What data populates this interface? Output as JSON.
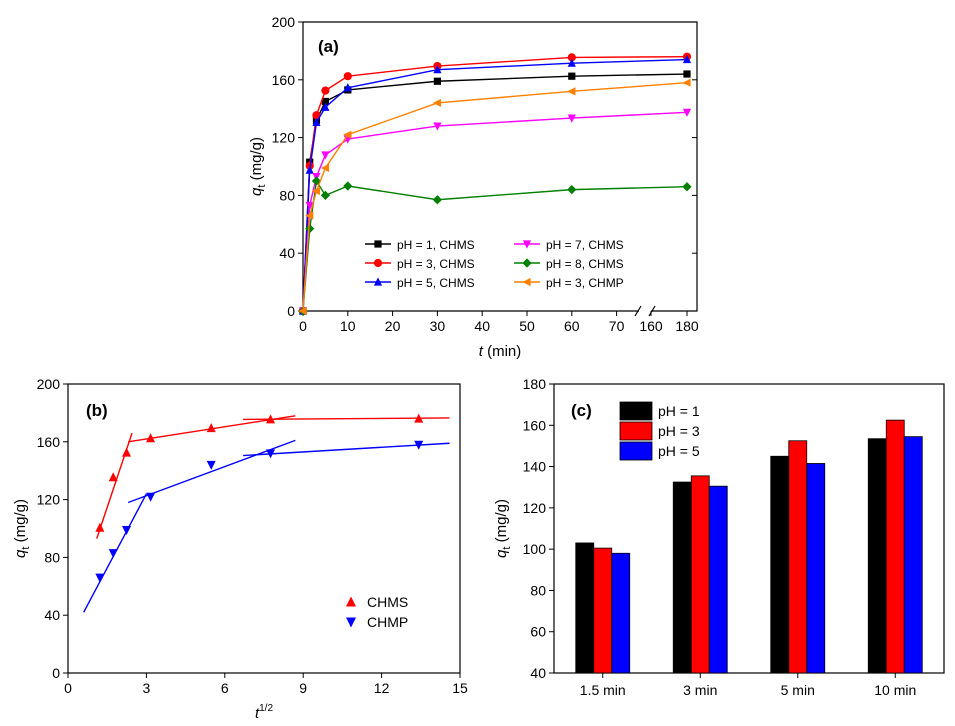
{
  "chart_data": [
    {
      "id": "a",
      "panel_label": "(a)",
      "type": "line",
      "xlabel_var": "t",
      "xlabel_unit": " (min)",
      "ylabel_var": "q",
      "ylabel_sub": "t",
      "ylabel_unit": " (mg/g)",
      "xlim": [
        0,
        180
      ],
      "x_break": [
        75,
        160
      ],
      "ylim": [
        0,
        200
      ],
      "xticks": [
        0,
        10,
        20,
        30,
        40,
        50,
        60,
        70,
        160,
        180
      ],
      "yticks": [
        0,
        40,
        80,
        120,
        160,
        200
      ],
      "legend_position": "bottom-center",
      "series": [
        {
          "name": "pH = 1, CHMS",
          "color": "#000000",
          "marker": "square",
          "x": [
            0,
            1.5,
            3,
            5,
            10,
            30,
            60,
            180
          ],
          "y": [
            0,
            103,
            132,
            145,
            153,
            159,
            162.5,
            164
          ]
        },
        {
          "name": "pH = 3, CHMS",
          "color": "#ff0000",
          "marker": "circle",
          "x": [
            0,
            1.5,
            3,
            5,
            10,
            30,
            60,
            180
          ],
          "y": [
            0,
            100.5,
            135.5,
            152.5,
            162.5,
            169.5,
            175.5,
            176
          ]
        },
        {
          "name": "pH = 5, CHMS",
          "color": "#0000ff",
          "marker": "triangle-up",
          "x": [
            0,
            1.5,
            3,
            5,
            10,
            30,
            60,
            180
          ],
          "y": [
            0,
            97.5,
            130.5,
            141,
            154.5,
            167,
            171.5,
            174
          ]
        },
        {
          "name": "pH = 7, CHMS",
          "color": "#ff00ff",
          "marker": "triangle-down",
          "x": [
            0,
            1.5,
            3,
            5,
            10,
            30,
            60,
            180
          ],
          "y": [
            0,
            73,
            93,
            108,
            119,
            128,
            133.5,
            137.5
          ]
        },
        {
          "name": "pH = 8, CHMS",
          "color": "#008000",
          "marker": "diamond",
          "x": [
            0,
            1.5,
            3,
            5,
            10,
            30,
            60,
            180
          ],
          "y": [
            0,
            57,
            90,
            80,
            86.5,
            77,
            84,
            86
          ]
        },
        {
          "name": "pH = 3, CHMP",
          "color": "#ff8000",
          "marker": "triangle-left",
          "x": [
            0,
            1.5,
            3,
            5,
            10,
            30,
            60,
            180
          ],
          "y": [
            0,
            66,
            83,
            99,
            122,
            144,
            152,
            158
          ]
        }
      ]
    },
    {
      "id": "b",
      "panel_label": "(b)",
      "type": "scatter",
      "xlabel_var": "t",
      "xlabel_sup": "1/2",
      "ylabel_var": "q",
      "ylabel_sub": "t",
      "ylabel_unit": " (mg/g)",
      "xlim": [
        0,
        15
      ],
      "ylim": [
        0,
        200
      ],
      "xticks": [
        0,
        3,
        6,
        9,
        12,
        15
      ],
      "yticks": [
        0,
        40,
        80,
        120,
        160,
        200
      ],
      "legend_position": "bottom-right",
      "series": [
        {
          "name": "CHMS",
          "color": "#ff0000",
          "marker": "triangle-up",
          "x": [
            1.22,
            1.73,
            2.24,
            3.16,
            5.48,
            7.75,
            13.42
          ],
          "y": [
            100.5,
            135.5,
            152.5,
            162.5,
            169.5,
            175.5,
            176
          ]
        },
        {
          "name": "CHMP",
          "color": "#0000ff",
          "marker": "triangle-down",
          "x": [
            1.22,
            1.73,
            2.24,
            3.16,
            5.48,
            7.75,
            13.42
          ],
          "y": [
            66,
            83,
            99,
            122,
            144,
            152,
            158
          ]
        }
      ],
      "fit_lines": [
        {
          "color": "#ff0000",
          "x": [
            1.1,
            2.45
          ],
          "y": [
            93,
            166
          ]
        },
        {
          "color": "#ff0000",
          "x": [
            2.3,
            8.7
          ],
          "y": [
            160,
            178
          ]
        },
        {
          "color": "#ff0000",
          "x": [
            6.7,
            14.6
          ],
          "y": [
            175.5,
            176.5
          ]
        },
        {
          "color": "#0000ff",
          "x": [
            0.6,
            3.0
          ],
          "y": [
            42,
            124
          ]
        },
        {
          "color": "#0000ff",
          "x": [
            2.3,
            8.7
          ],
          "y": [
            118,
            161
          ]
        },
        {
          "color": "#0000ff",
          "x": [
            6.7,
            14.6
          ],
          "y": [
            150.5,
            159
          ]
        }
      ]
    },
    {
      "id": "c",
      "panel_label": "(c)",
      "type": "bar",
      "ylabel_var": "q",
      "ylabel_sub": "t",
      "ylabel_unit": " (mg/g)",
      "categories": [
        "1.5 min",
        "3 min",
        "5 min",
        "10 min"
      ],
      "ylim": [
        40,
        180
      ],
      "yticks": [
        40,
        60,
        80,
        100,
        120,
        140,
        160,
        180
      ],
      "legend_position": "top-left",
      "series": [
        {
          "name": "pH = 1",
          "color": "#000000",
          "values": [
            103,
            132.5,
            145,
            153.5
          ]
        },
        {
          "name": "pH = 3",
          "color": "#ff0000",
          "values": [
            100.5,
            135.5,
            152.5,
            162.5
          ]
        },
        {
          "name": "pH = 5",
          "color": "#0000ff",
          "values": [
            98,
            130.5,
            141.5,
            154.5
          ]
        }
      ]
    }
  ]
}
